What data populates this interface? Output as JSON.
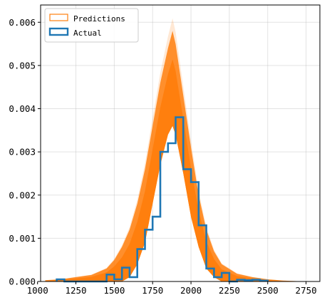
{
  "chart_data": {
    "type": "histogram",
    "xlim": [
      1020,
      2840
    ],
    "ylim": [
      0,
      0.0064
    ],
    "grid": true,
    "legend_position": "top-left",
    "x_ticks": [
      1000,
      1250,
      1500,
      1750,
      2000,
      2250,
      2500,
      2750
    ],
    "x_tick_labels": [
      "1000",
      "1250",
      "1500",
      "1750",
      "2000",
      "2250",
      "2500",
      "2750"
    ],
    "y_ticks": [
      0,
      0.001,
      0.002,
      0.003,
      0.004,
      0.005,
      0.006
    ],
    "y_tick_labels": [
      "0.000",
      "0.001",
      "0.002",
      "0.003",
      "0.004",
      "0.005",
      "0.006"
    ],
    "series": [
      {
        "name": "Predictions",
        "kind": "posterior-predictive-band",
        "color": "#ff7f0e",
        "x": [
          1050,
          1150,
          1250,
          1350,
          1450,
          1500,
          1550,
          1600,
          1650,
          1700,
          1750,
          1800,
          1850,
          1880,
          1900,
          1950,
          2000,
          2050,
          2100,
          2150,
          2200,
          2300,
          2400,
          2500,
          2600,
          2750
        ],
        "lower": [
          0,
          0,
          0,
          0,
          0,
          0,
          0,
          0.0001,
          0.0004,
          0.0009,
          0.0018,
          0.0027,
          0.0034,
          0.0036,
          0.0034,
          0.0025,
          0.0015,
          0.0008,
          0.0003,
          0.0001,
          0,
          0,
          0,
          0,
          0,
          0
        ],
        "upper": [
          3e-05,
          5e-05,
          0.0001,
          0.00015,
          0.0003,
          0.0005,
          0.0008,
          0.0012,
          0.0018,
          0.0026,
          0.0036,
          0.0046,
          0.0054,
          0.0058,
          0.0055,
          0.0043,
          0.0031,
          0.002,
          0.0012,
          0.0007,
          0.0004,
          0.00018,
          0.0001,
          5e-05,
          2e-05,
          0
        ]
      },
      {
        "name": "Actual",
        "kind": "step-histogram",
        "color": "#1f77b4",
        "bin_edges": [
          1125,
          1175,
          1450,
          1500,
          1550,
          1600,
          1650,
          1700,
          1750,
          1800,
          1850,
          1900,
          1950,
          2000,
          2050,
          2100,
          2150,
          2200,
          2250,
          2300,
          2350,
          2400,
          2450,
          2500
        ],
        "values": [
          5e-05,
          0,
          0.00016,
          5e-05,
          0.00032,
          0.0001,
          0.00075,
          0.0012,
          0.0015,
          0.003,
          0.0032,
          0.0038,
          0.0026,
          0.0023,
          0.0013,
          0.0003,
          0.0001,
          0.0002,
          0,
          4e-05,
          3e-05,
          4e-05,
          2e-05
        ]
      }
    ]
  }
}
